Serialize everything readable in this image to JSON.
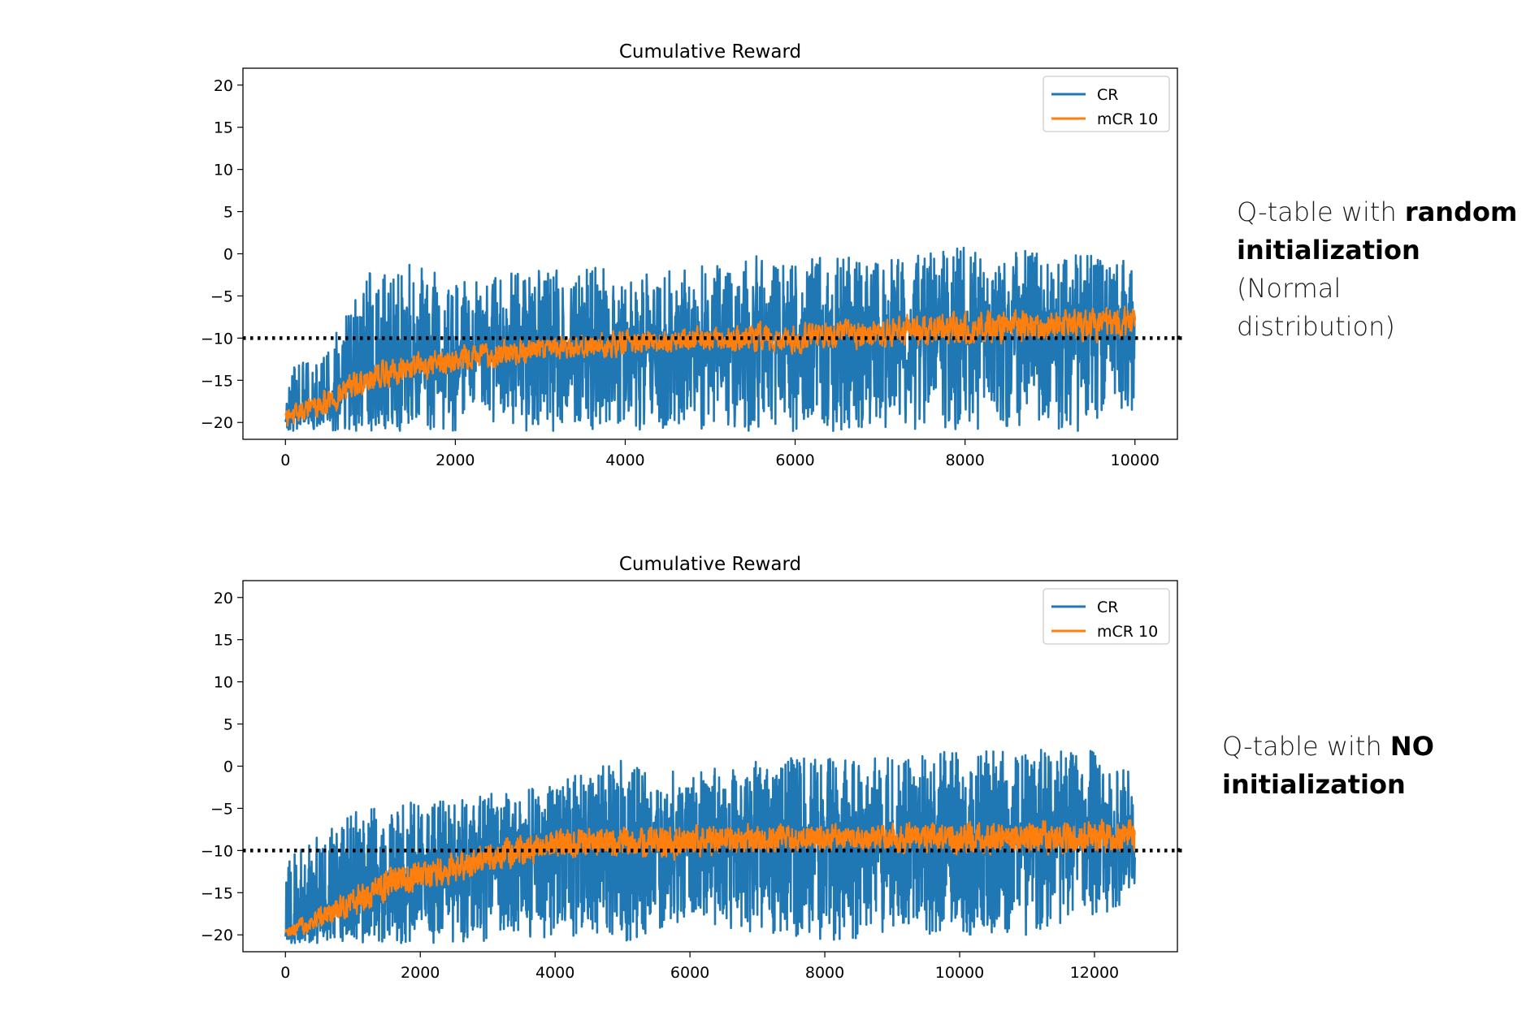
{
  "chart_data": [
    {
      "type": "line",
      "title": "Cumulative Reward",
      "xlabel": "",
      "ylabel": "",
      "xlim": [
        -500,
        10500
      ],
      "ylim": [
        -22,
        22
      ],
      "xticks": [
        0,
        2000,
        4000,
        6000,
        8000,
        10000
      ],
      "yticks": [
        20,
        15,
        10,
        5,
        0,
        -5,
        -10,
        -15,
        -20
      ],
      "xtick_labels": [
        "0",
        "2000",
        "4000",
        "6000",
        "8000",
        "10000"
      ],
      "ytick_labels": [
        "20",
        "15",
        "10",
        "5",
        "0",
        "−5",
        "−10",
        "−15",
        "−20"
      ],
      "legend": {
        "placement": "top-right",
        "entries": [
          "CR",
          "mCR 10"
        ]
      },
      "reference_line": {
        "y": -10,
        "style": "dotted",
        "color": "#000000"
      },
      "episodes": 10000,
      "series": [
        {
          "name": "CR",
          "color": "#1f77b4",
          "x": [
            0,
            500,
            1000,
            1500,
            2000,
            2500,
            3000,
            3500,
            4000,
            4500,
            5000,
            5500,
            6000,
            6500,
            7000,
            7500,
            8000,
            8500,
            9000,
            9500,
            10000
          ],
          "mean": [
            -19.5,
            -17.5,
            -14.5,
            -13.5,
            -12.5,
            -12,
            -11,
            -11,
            -10.5,
            -10.5,
            -10,
            -10,
            -10,
            -9.5,
            -9.5,
            -9,
            -9,
            -8.5,
            -8.5,
            -8.5,
            -8
          ],
          "max": [
            -14,
            -11,
            -2,
            -1,
            -3,
            -2,
            -2,
            -1,
            -2,
            -2,
            -1,
            0,
            -1,
            0,
            -1,
            0,
            1,
            1,
            0,
            0,
            -1
          ],
          "min": [
            -21,
            -21,
            -21,
            -21,
            -21,
            -21,
            -21,
            -21,
            -21,
            -21,
            -21,
            -21,
            -21,
            -21,
            -21,
            -21,
            -21,
            -21,
            -21,
            -21,
            -19
          ]
        },
        {
          "name": "mCR 10",
          "color": "#ff7f0e",
          "x": [
            0,
            500,
            1000,
            1500,
            2000,
            2500,
            3000,
            3500,
            4000,
            4500,
            5000,
            5500,
            6000,
            6500,
            7000,
            7500,
            8000,
            8500,
            9000,
            9500,
            10000
          ],
          "mean": [
            -19.5,
            -17.5,
            -14.5,
            -13.5,
            -12.5,
            -12,
            -11,
            -11,
            -10.5,
            -10.5,
            -10,
            -10,
            -10,
            -9.5,
            -9.5,
            -9,
            -9,
            -8.5,
            -8.5,
            -8.5,
            -8
          ],
          "max": [
            -18,
            -15,
            -12,
            -11,
            -10,
            -9.5,
            -9,
            -9,
            -8.5,
            -8.5,
            -8,
            -7.5,
            -7.5,
            -7,
            -7,
            -6.5,
            -6,
            -5.5,
            -5.5,
            -5.5,
            -5
          ],
          "min": [
            -21,
            -20,
            -17,
            -16,
            -15,
            -14.5,
            -13,
            -13,
            -13,
            -12.5,
            -12.5,
            -12.5,
            -12.5,
            -12,
            -12,
            -12,
            -12,
            -11.5,
            -11,
            -11,
            -11
          ]
        }
      ]
    },
    {
      "type": "line",
      "title": "Cumulative Reward",
      "xlabel": "",
      "ylabel": "",
      "xlim": [
        -630,
        13230
      ],
      "ylim": [
        -22,
        22
      ],
      "xticks": [
        0,
        2000,
        4000,
        6000,
        8000,
        10000,
        12000
      ],
      "yticks": [
        20,
        15,
        10,
        5,
        0,
        -5,
        -10,
        -15,
        -20
      ],
      "xtick_labels": [
        "0",
        "2000",
        "4000",
        "6000",
        "8000",
        "10000",
        "12000"
      ],
      "ytick_labels": [
        "20",
        "15",
        "10",
        "5",
        "0",
        "−5",
        "−10",
        "−15",
        "−20"
      ],
      "legend": {
        "placement": "top-right",
        "entries": [
          "CR",
          "mCR 10"
        ]
      },
      "reference_line": {
        "y": -10,
        "style": "dotted",
        "color": "#000000"
      },
      "episodes": 12600,
      "series": [
        {
          "name": "CR",
          "color": "#1f77b4",
          "x": [
            0,
            500,
            1000,
            1500,
            2000,
            2500,
            3000,
            3500,
            4000,
            5000,
            6000,
            7000,
            8000,
            9000,
            10000,
            11000,
            12000,
            12600
          ],
          "mean": [
            -20,
            -18,
            -16,
            -14,
            -13,
            -12,
            -11,
            -10,
            -9,
            -9,
            -9,
            -8.5,
            -8.5,
            -8.5,
            -8.5,
            -8.5,
            -8.5,
            -8.5
          ],
          "max": [
            -11,
            -8,
            -5,
            -5,
            -4,
            -4,
            -3,
            -3,
            -2,
            1,
            -1,
            1,
            1,
            1,
            2,
            2,
            2,
            -1
          ],
          "min": [
            -21,
            -21,
            -21,
            -21,
            -21,
            -21,
            -21,
            -21,
            -20,
            -21,
            -18,
            -20,
            -21,
            -20,
            -20,
            -20,
            -18,
            -16
          ]
        },
        {
          "name": "mCR 10",
          "color": "#ff7f0e",
          "x": [
            0,
            500,
            1000,
            1500,
            2000,
            2500,
            3000,
            3500,
            4000,
            5000,
            6000,
            7000,
            8000,
            9000,
            10000,
            11000,
            12000,
            12600
          ],
          "mean": [
            -20,
            -18,
            -16,
            -14,
            -13,
            -12,
            -11,
            -10,
            -9,
            -9,
            -9,
            -8.5,
            -8.5,
            -8.5,
            -8.5,
            -8.5,
            -8.5,
            -8.5
          ],
          "max": [
            -19,
            -16,
            -13,
            -11,
            -10,
            -9,
            -8,
            -7,
            -6.5,
            -6,
            -6,
            -6,
            -6,
            -6,
            -5.5,
            -5.5,
            -5,
            -5.5
          ],
          "min": [
            -21,
            -20,
            -18,
            -16.5,
            -15,
            -14,
            -13,
            -12,
            -11.5,
            -11.5,
            -12,
            -11,
            -11,
            -11,
            -11,
            -11,
            -11,
            -11
          ]
        }
      ]
    }
  ],
  "annotations": {
    "top": {
      "line1_pre": "Q-table with ",
      "line1_bold": "random",
      "line2_bold": "initialization",
      "line2_post": " (Normal",
      "line3": "distribution)"
    },
    "bottom": {
      "line1_pre": "Q-table with ",
      "line1_bold": "NO",
      "line2_bold": "initialization"
    }
  }
}
